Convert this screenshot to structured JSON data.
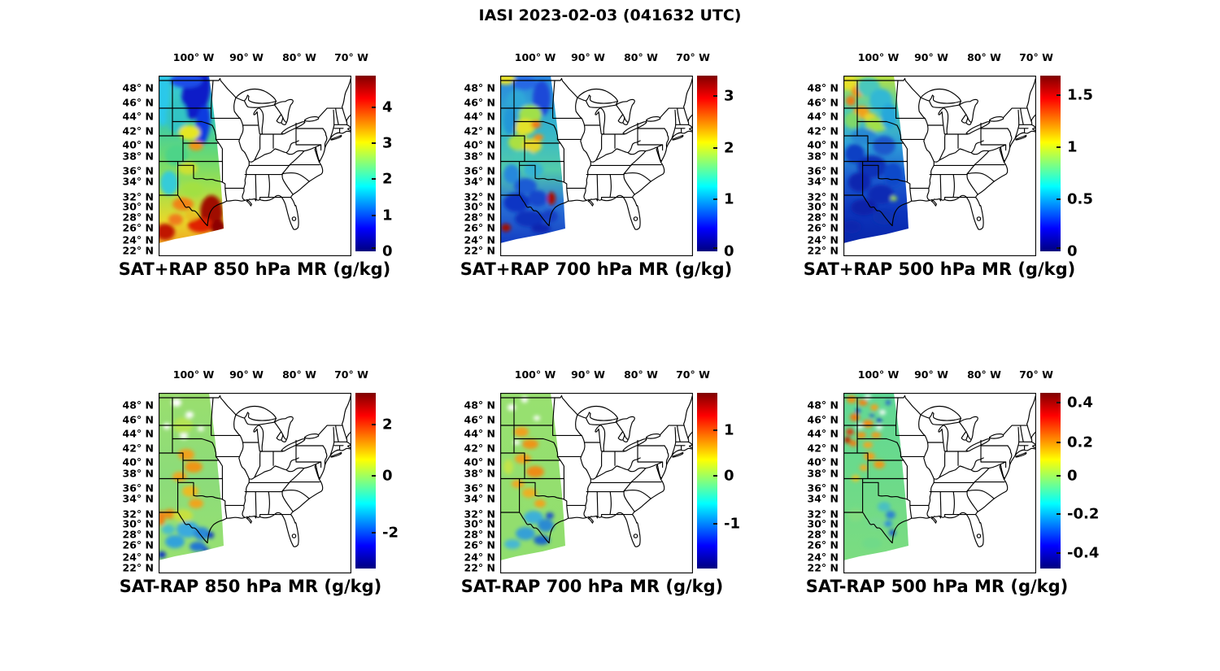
{
  "figure": {
    "title": "IASI 2023-02-03 (041632 UTC)"
  },
  "axes": {
    "lon_ticks": [
      "100° W",
      "90° W",
      "80° W",
      "70° W"
    ],
    "lat_ticks": [
      "48° N",
      "46° N",
      "44° N",
      "42° N",
      "40° N",
      "38° N",
      "36° N",
      "34° N",
      "32° N",
      "30° N",
      "28° N",
      "26° N",
      "24° N",
      "22° N"
    ]
  },
  "panels": [
    {
      "title": "SAT+RAP 850 hPa MR (g/kg)",
      "colorbar": {
        "ticks": [
          "4",
          "3",
          "2",
          "1",
          "0"
        ]
      }
    },
    {
      "title": "SAT+RAP 700 hPa MR (g/kg)",
      "colorbar": {
        "ticks": [
          "3",
          "2",
          "1",
          "0"
        ]
      }
    },
    {
      "title": "SAT+RAP 500 hPa MR (g/kg)",
      "colorbar": {
        "ticks": [
          "1.5",
          "1",
          "0.5",
          "0"
        ]
      }
    },
    {
      "title": "SAT-RAP 850 hPa MR (g/kg)",
      "colorbar": {
        "ticks": [
          "2",
          "0",
          "-2"
        ]
      }
    },
    {
      "title": "SAT-RAP 700 hPa MR (g/kg)",
      "colorbar": {
        "ticks": [
          "1",
          "0",
          "-1"
        ]
      }
    },
    {
      "title": "SAT-RAP 500 hPa MR (g/kg)",
      "colorbar": {
        "ticks": [
          "0.4",
          "0.2",
          "0",
          "-0.2",
          "-0.4"
        ]
      }
    }
  ],
  "colors": {
    "jet_colormap": [
      "#00007f",
      "#0000ff",
      "#00ffff",
      "#ffff00",
      "#ff0000",
      "#7f0000"
    ],
    "map_outline": "#000000",
    "background": "#ffffff"
  },
  "chart_data": [
    {
      "type": "heatmap",
      "title": "SAT+RAP 850 hPa MR (g/kg)",
      "variable": "850 hPa water-vapor mixing ratio, IASI satellite retrieval + RAP background",
      "units": "g/kg",
      "colormap": "jet",
      "colorbar_ticks": [
        0,
        1,
        2,
        3,
        4
      ],
      "value_range": [
        0,
        4.9
      ],
      "extent": {
        "lon_deg_W": [
          107,
          70
        ],
        "lat_deg_N": [
          22,
          50
        ]
      },
      "lon_tick_values_W": [
        100,
        90,
        80,
        70
      ],
      "lat_tick_values_N": [
        48,
        46,
        44,
        42,
        40,
        38,
        36,
        34,
        32,
        30,
        28,
        26,
        24,
        22
      ],
      "swath_coverage_lon_W": [
        107,
        95
      ],
      "pattern": "Satellite swath over the Great Plains; dry band <0.7 g/kg (dark blue) along NE swath edge from North Dakota to Nebraska; 1-3 g/kg (cyan-green-yellow) over the central Plains; moist plume 3.5-4.8 g/kg (orange/dark red) over south Texas and the western Gulf of Mexico."
    },
    {
      "type": "heatmap",
      "title": "SAT+RAP 700 hPa MR (g/kg)",
      "variable": "700 hPa water-vapor mixing ratio, IASI satellite retrieval + RAP background",
      "units": "g/kg",
      "colormap": "jet",
      "colorbar_ticks": [
        0,
        1,
        2,
        3
      ],
      "value_range": [
        0,
        3.4
      ],
      "extent": {
        "lon_deg_W": [
          107,
          70
        ],
        "lat_deg_N": [
          22,
          50
        ]
      },
      "lon_tick_values_W": [
        100,
        90,
        80,
        70
      ],
      "lat_tick_values_N": [
        48,
        46,
        44,
        42,
        40,
        38,
        36,
        34,
        32,
        30,
        28,
        26,
        24,
        22
      ],
      "swath_coverage_lon_W": [
        107,
        95
      ],
      "pattern": "Mostly 0.5-2.2 g/kg; yellow ~2 g/kg at far northwest corner; green-yellow band 36-44N with orange specks; dry <1 g/kg (dark blue) over southern Texas; local maximum ~3 g/kg (dark red spot) near 31N on the east edge of the swath."
    },
    {
      "type": "heatmap",
      "title": "SAT+RAP 500 hPa MR (g/kg)",
      "variable": "500 hPa water-vapor mixing ratio, IASI satellite retrieval + RAP background",
      "units": "g/kg",
      "colormap": "jet",
      "colorbar_ticks": [
        0,
        0.5,
        1,
        1.5
      ],
      "value_range": [
        0,
        1.7
      ],
      "extent": {
        "lon_deg_W": [
          107,
          70
        ],
        "lat_deg_N": [
          22,
          50
        ]
      },
      "lon_tick_values_W": [
        100,
        90,
        80,
        70
      ],
      "lat_tick_values_N": [
        48,
        46,
        44,
        42,
        40,
        38,
        36,
        34,
        32,
        30,
        28,
        26,
        24,
        22
      ],
      "swath_coverage_lon_W": [
        107,
        95
      ],
      "pattern": "Moist 0.8-1.2 g/kg (yellow/orange) north of ~42N over the Dakotas/Montana edge; very dry <0.4 g/kg (dark blue) south of ~40N over New Mexico, Texas and Oklahoma; tiny green speck near 31N at swath east edge."
    },
    {
      "type": "heatmap",
      "title": "SAT-RAP 850 hPa MR (g/kg)",
      "variable": "850 hPa mixing-ratio difference, satellite minus RAP model",
      "units": "g/kg",
      "colormap": "jet",
      "colorbar_ticks": [
        -2,
        0,
        2
      ],
      "value_range": [
        -3.3,
        3.2
      ],
      "extent": {
        "lon_deg_W": [
          107,
          70
        ],
        "lat_deg_N": [
          22,
          50
        ]
      },
      "lon_tick_values_W": [
        100,
        90,
        80,
        70
      ],
      "lat_tick_values_N": [
        48,
        46,
        44,
        42,
        40,
        38,
        36,
        34,
        32,
        30,
        28,
        26,
        24,
        22
      ],
      "swath_coverage_lon_W": [
        107,
        95
      ],
      "pattern": "Differences mostly 0 to +1 g/kg (green/yellow) with scattered data gaps; +1 to +2 g/kg (orange) patches 36-42N; -1 to -3 g/kg (cyan/blue) over south Texas with isolated dark-blue spots near the coast."
    },
    {
      "type": "heatmap",
      "title": "SAT-RAP 700 hPa MR (g/kg)",
      "variable": "700 hPa mixing-ratio difference, satellite minus RAP model",
      "units": "g/kg",
      "colormap": "jet",
      "colorbar_ticks": [
        -1,
        0,
        1
      ],
      "value_range": [
        -2.0,
        1.8
      ],
      "extent": {
        "lon_deg_W": [
          107,
          70
        ],
        "lat_deg_N": [
          22,
          50
        ]
      },
      "lon_tick_values_W": [
        100,
        90,
        80,
        70
      ],
      "lat_tick_values_N": [
        48,
        46,
        44,
        42,
        40,
        38,
        36,
        34,
        32,
        30,
        28,
        26,
        24,
        22
      ],
      "swath_coverage_lon_W": [
        107,
        95
      ],
      "pattern": "Mostly near-zero (green); +0.5 to +1 g/kg (orange) patches 36-46N; -0.5 to -1.5 g/kg (cyan/blue) over southern Texas and the coastal bend."
    },
    {
      "type": "heatmap",
      "title": "SAT-RAP 500 hPa MR (g/kg)",
      "variable": "500 hPa mixing-ratio difference, satellite minus RAP model",
      "units": "g/kg",
      "colormap": "jet",
      "colorbar_ticks": [
        -0.4,
        -0.2,
        0,
        0.2,
        0.4
      ],
      "value_range": [
        -0.45,
        0.45
      ],
      "extent": {
        "lon_deg_W": [
          107,
          70
        ],
        "lat_deg_N": [
          22,
          50
        ]
      },
      "lon_tick_values_W": [
        100,
        90,
        80,
        70
      ],
      "lat_tick_values_N": [
        48,
        46,
        44,
        42,
        40,
        38,
        36,
        34,
        32,
        30,
        28,
        26,
        24,
        22
      ],
      "swath_coverage_lon_W": [
        107,
        95
      ],
      "pattern": "Near-zero (green) overall; speckled +0.2 to +0.45 g/kg (orange/red) blobs north of ~40N with a few -0.2 to -0.4 (blue) dots; weak negatives along the east swath edge 28-33N."
    }
  ]
}
